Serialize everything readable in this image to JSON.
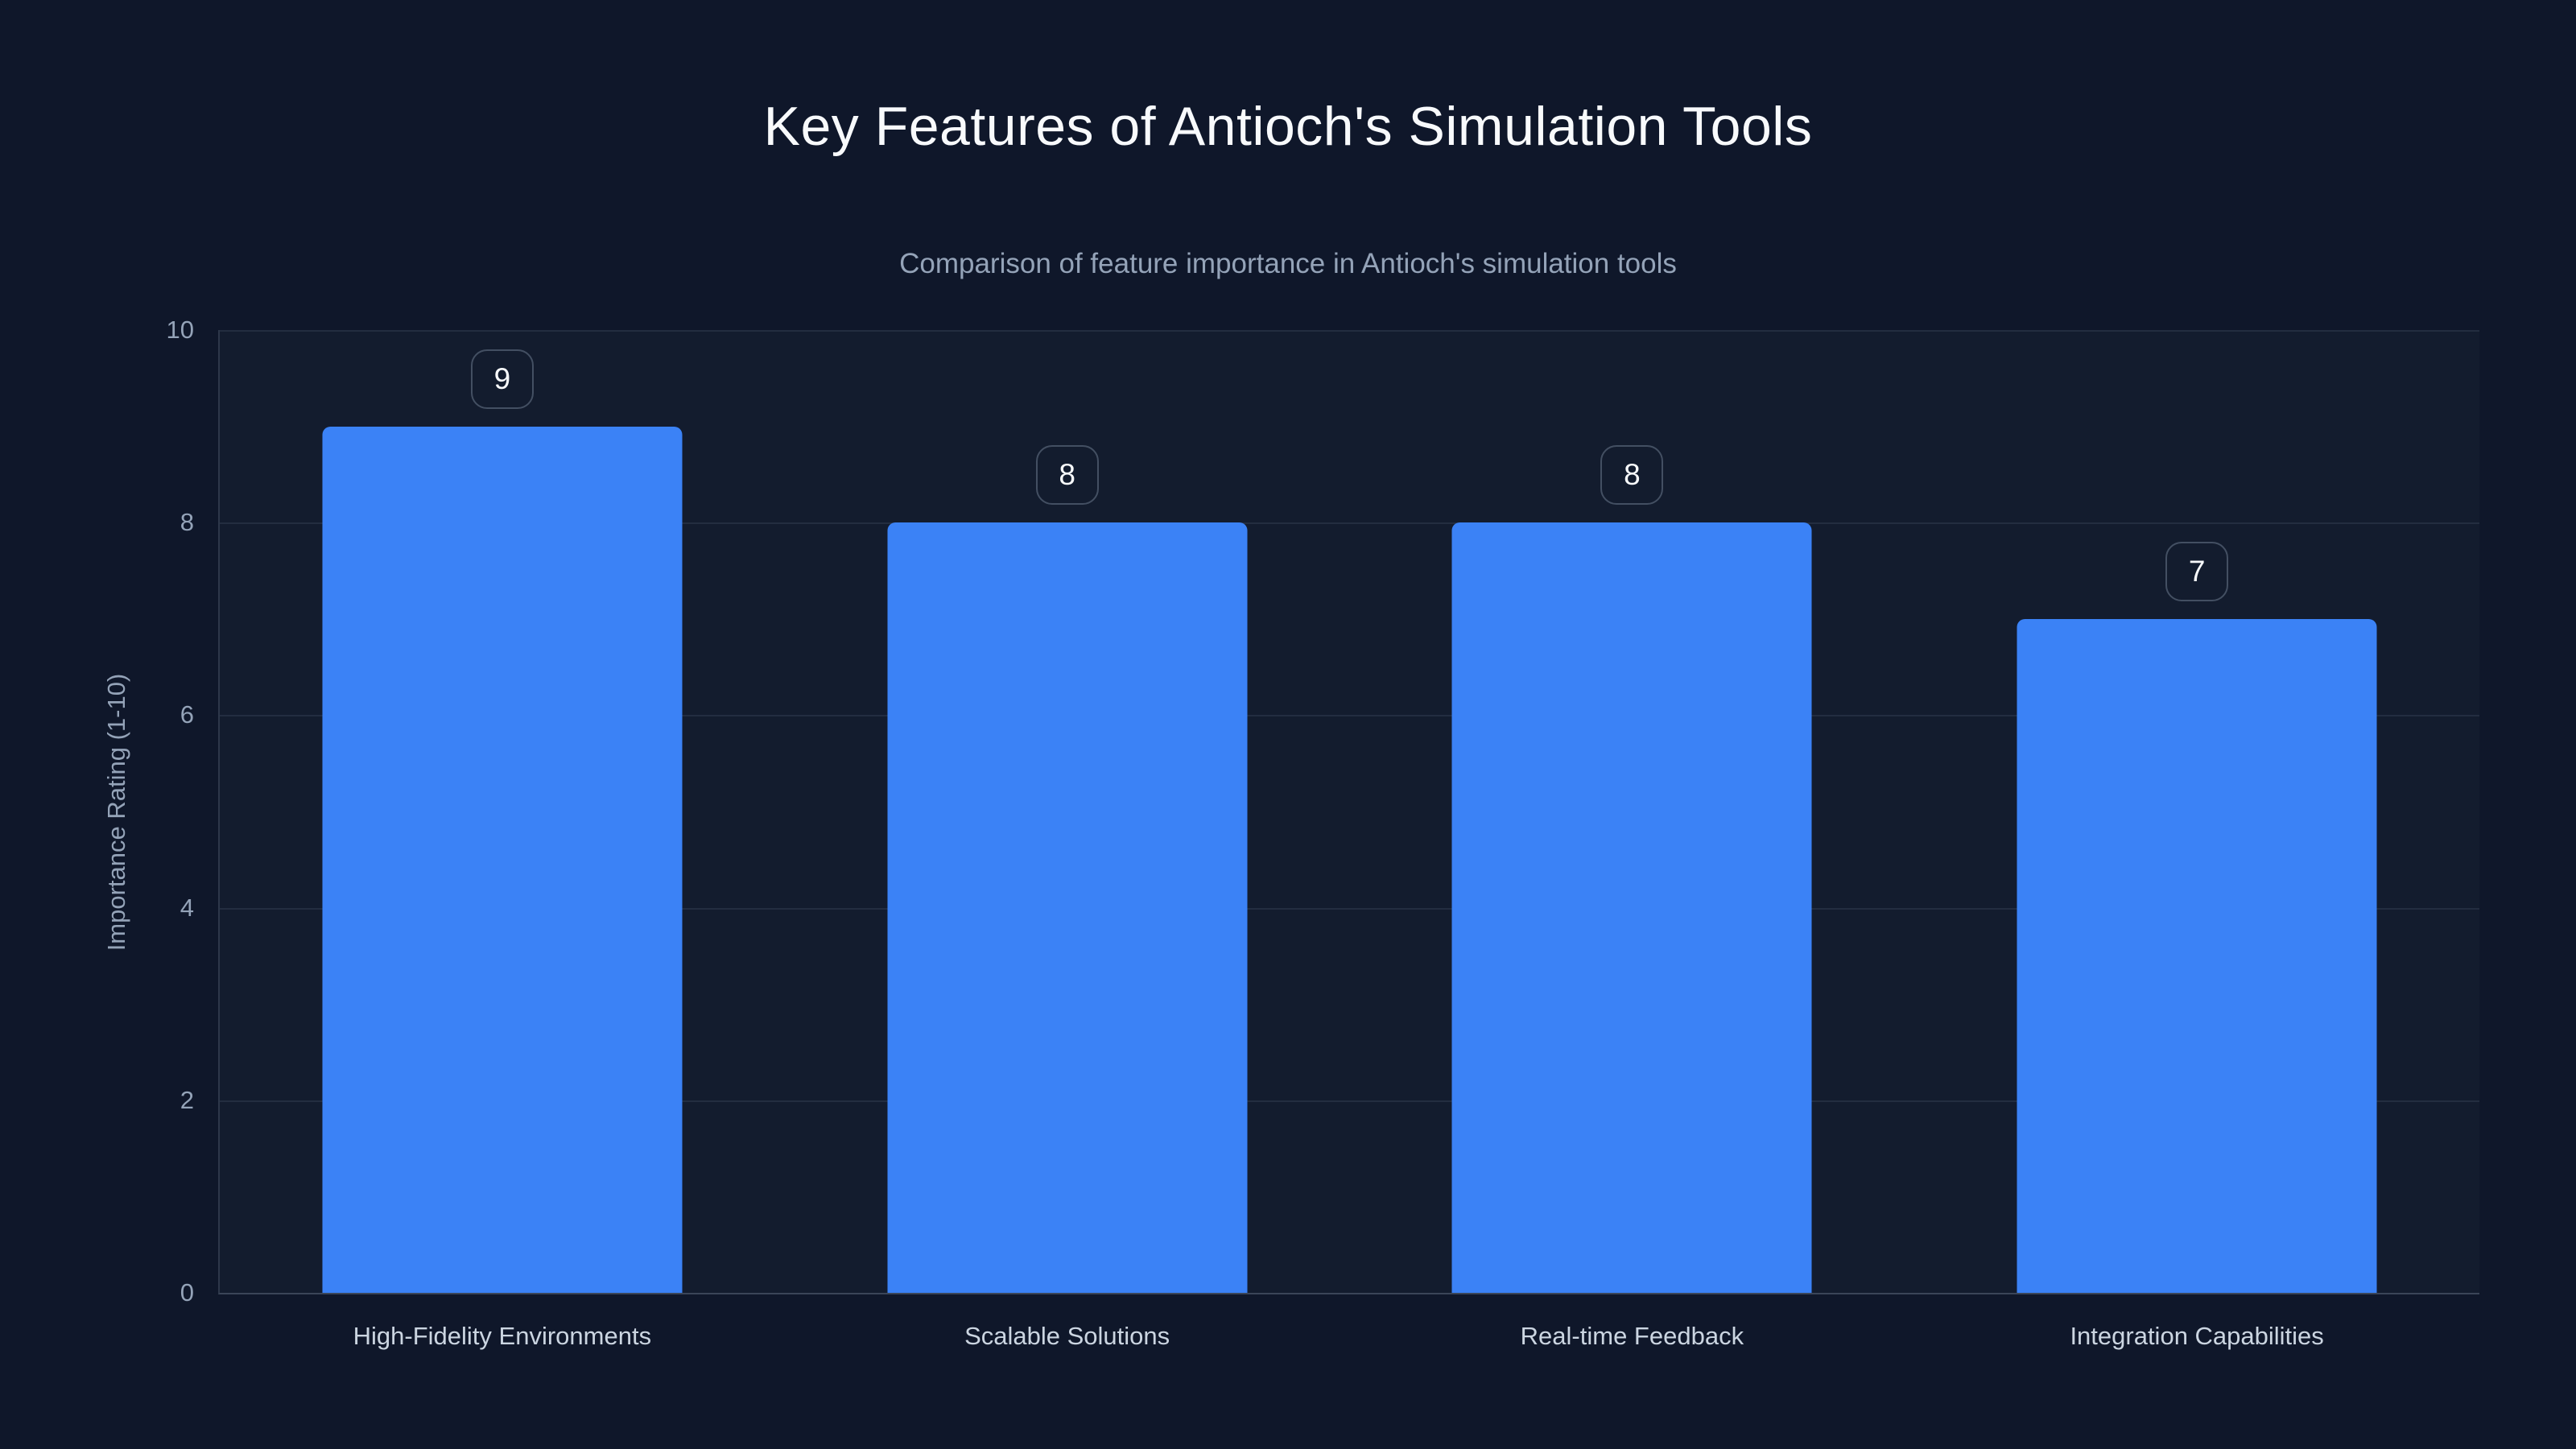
{
  "chart_data": {
    "type": "bar",
    "title": "Key Features of Antioch's Simulation Tools",
    "subtitle": "Comparison of feature importance in Antioch's simulation tools",
    "categories": [
      "High-Fidelity Environments",
      "Scalable Solutions",
      "Real-time Feedback",
      "Integration Capabilities"
    ],
    "values": [
      9,
      8,
      8,
      7
    ],
    "data_labels": [
      "9",
      "8",
      "8",
      "7"
    ],
    "xlabel": "",
    "ylabel": "Importance Rating (1-10)",
    "ylim": [
      0,
      10
    ],
    "yticks": [
      0,
      2,
      4,
      6,
      8,
      10
    ],
    "grid": true,
    "legend": false,
    "bar_color": "#3b82f6",
    "background_color": "#0f172a",
    "title_color": "#f8fafc",
    "subtitle_color": "#94a3b8",
    "tick_label_color": "#94a3b8",
    "category_label_color": "#cbd5e1",
    "badge_text_color": "#f8fafc"
  }
}
